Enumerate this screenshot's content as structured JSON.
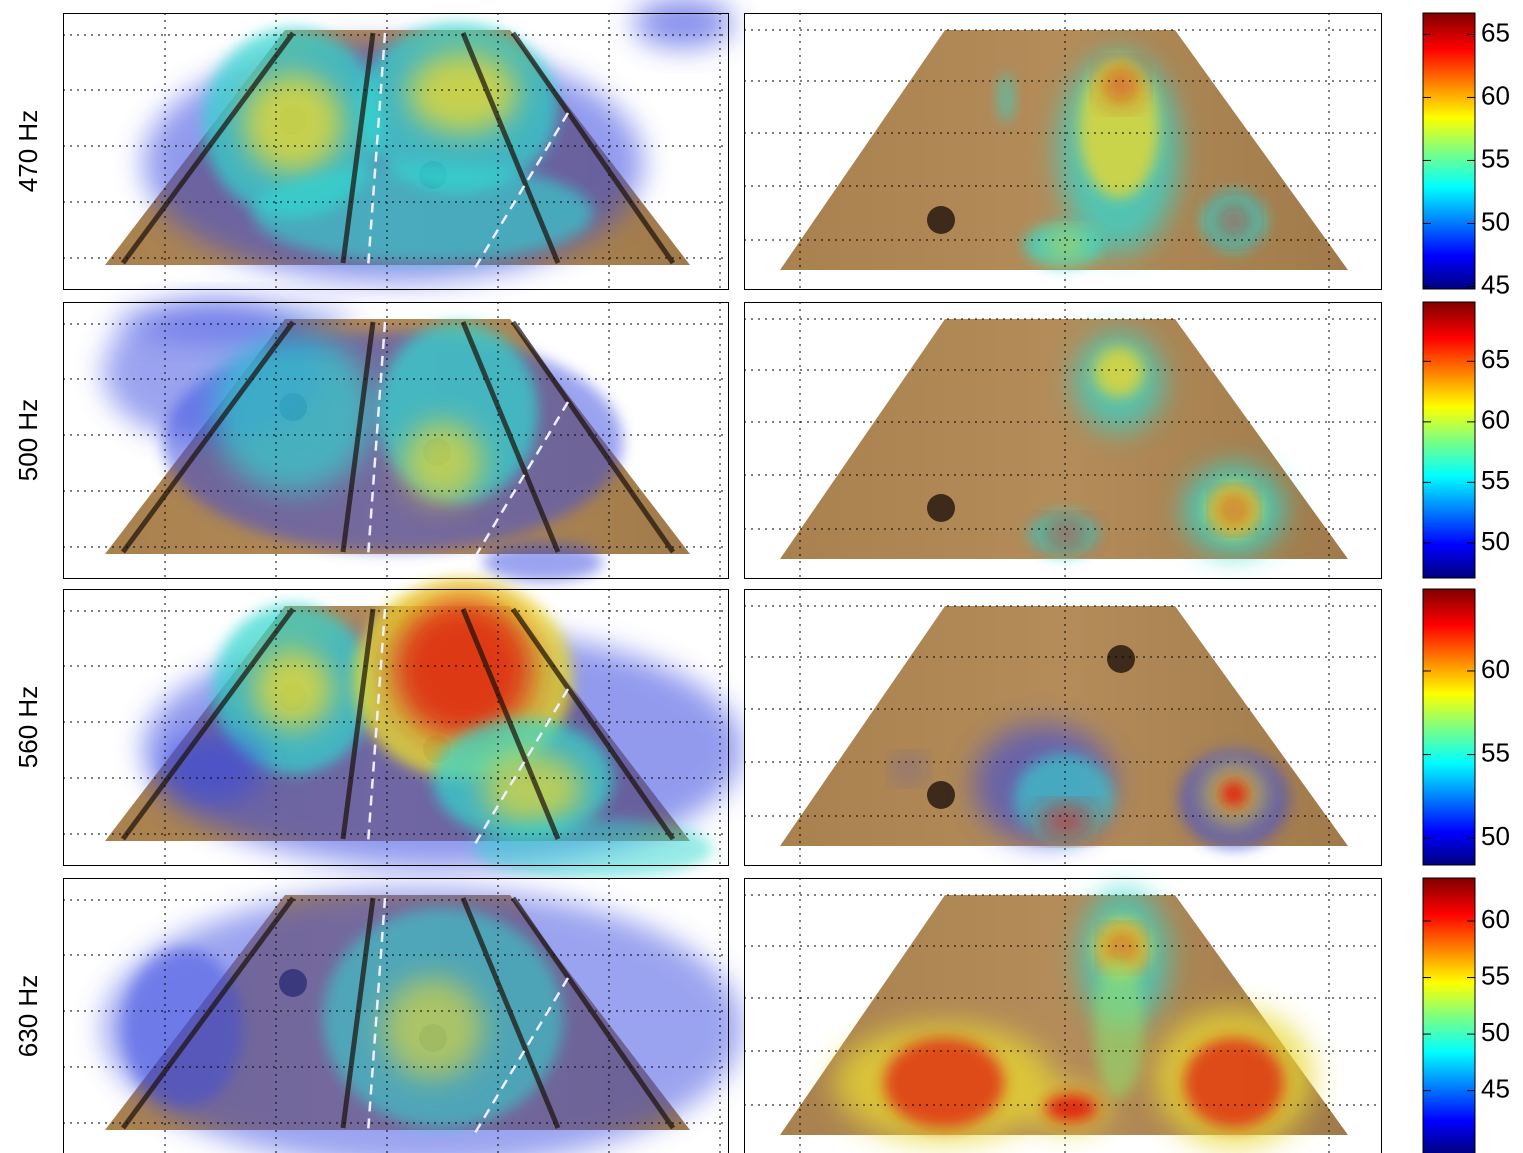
{
  "rows": [
    {
      "label": "470 Hz",
      "colorbar": {
        "ylim": [
          44.8,
          66.7
        ],
        "yticks": [
          45,
          50,
          55,
          60,
          65
        ]
      }
    },
    {
      "label": "500 Hz",
      "colorbar": {
        "ylim": [
          47.1,
          69.9
        ],
        "yticks": [
          50,
          55,
          60,
          65
        ]
      }
    },
    {
      "label": "560 Hz",
      "colorbar": {
        "ylim": [
          48.4,
          64.9
        ],
        "yticks": [
          50,
          55,
          60
        ]
      }
    },
    {
      "label": "630 Hz",
      "colorbar": {
        "ylim": [
          39.4,
          63.8
        ],
        "yticks": [
          45,
          50,
          55,
          60
        ]
      }
    }
  ]
}
